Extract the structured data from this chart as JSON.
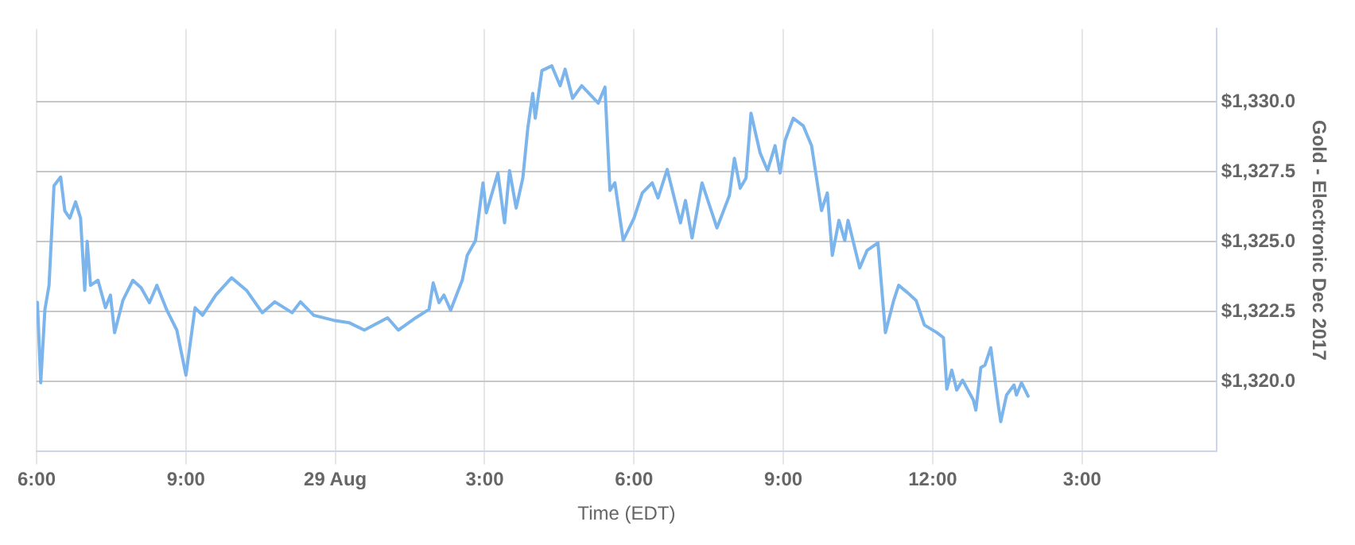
{
  "chart_data": {
    "type": "line",
    "xlabel": "Time (EDT)",
    "ylabel": "Gold - Electronic Dec 2017",
    "x": [
      "--08-28T18:01",
      "--08-28T18:05",
      "--08-28T18:10",
      "--08-28T18:15",
      "--08-28T18:21",
      "--08-28T18:29",
      "--08-28T18:34",
      "--08-28T18:40",
      "--08-28T18:47",
      "--08-28T18:53",
      "--08-28T18:58",
      "--08-28T19:01",
      "--08-28T19:05",
      "--08-28T19:14",
      "--08-28T19:23",
      "--08-28T19:29",
      "--08-28T19:34",
      "--08-28T19:44",
      "--08-28T19:56",
      "--08-28T20:06",
      "--08-28T20:16",
      "--08-28T20:25",
      "--08-28T20:37",
      "--08-28T20:49",
      "--08-28T21:00",
      "--08-28T21:11",
      "--08-28T21:20",
      "--08-28T21:36",
      "--08-28T21:55",
      "--08-28T22:13",
      "--08-28T22:32",
      "--08-28T22:47",
      "--08-28T23:08",
      "--08-28T23:18",
      "--08-28T23:34",
      "--08-28T23:58",
      "--08-29T00:17",
      "--08-29T00:35",
      "--08-29T01:03",
      "--08-29T01:16",
      "--08-29T01:37",
      "--08-29T01:53",
      "--08-29T01:58",
      "--08-29T02:05",
      "--08-29T02:11",
      "--08-29T02:19",
      "--08-29T02:33",
      "--08-29T02:39",
      "--08-29T02:49",
      "--08-29T02:58",
      "--08-29T03:02",
      "--08-29T03:16",
      "--08-29T03:24",
      "--08-29T03:30",
      "--08-29T03:38",
      "--08-29T03:46",
      "--08-29T03:52",
      "--08-29T03:58",
      "--08-29T04:01",
      "--08-29T04:09",
      "--08-29T04:21",
      "--08-29T04:31",
      "--08-29T04:37",
      "--08-29T04:46",
      "--08-29T04:57",
      "--08-29T05:17",
      "--08-29T05:25",
      "--08-29T05:31",
      "--08-29T05:37",
      "--08-29T05:47",
      "--08-29T06:00",
      "--08-29T06:10",
      "--08-29T06:22",
      "--08-29T06:29",
      "--08-29T06:40",
      "--08-29T06:56",
      "--08-29T07:02",
      "--08-29T07:10",
      "--08-29T07:22",
      "--08-29T07:40",
      "--08-29T07:55",
      "--08-29T08:01",
      "--08-29T08:08",
      "--08-29T08:15",
      "--08-29T08:21",
      "--08-29T08:32",
      "--08-29T08:41",
      "--08-29T08:50",
      "--08-29T08:56",
      "--08-29T09:02",
      "--08-29T09:12",
      "--08-29T09:24",
      "--08-29T09:34",
      "--08-29T09:46",
      "--08-29T09:53",
      "--08-29T09:59",
      "--08-29T10:07",
      "--08-29T10:14",
      "--08-29T10:18",
      "--08-29T10:32",
      "--08-29T10:41",
      "--08-29T10:54",
      "--08-29T11:03",
      "--08-29T11:13",
      "--08-29T11:19",
      "--08-29T11:30",
      "--08-29T11:40",
      "--08-29T11:50",
      "--08-29T12:05",
      "--08-29T12:13",
      "--08-29T12:17",
      "--08-29T12:23",
      "--08-29T12:29",
      "--08-29T12:36",
      "--08-29T12:49",
      "--08-29T12:52",
      "--08-29T12:58",
      "--08-29T13:03",
      "--08-29T13:10",
      "--08-29T13:19",
      "--08-29T13:22",
      "--08-29T13:29",
      "--08-29T13:38",
      "--08-29T13:41",
      "--08-29T13:47",
      "--08-29T13:55"
    ],
    "series": [
      {
        "color": "#7cb5ec",
        "values": [
          1322.83,
          1319.96,
          1322.57,
          1323.44,
          1327.0,
          1327.31,
          1326.1,
          1325.84,
          1326.42,
          1325.84,
          1323.26,
          1325.01,
          1323.44,
          1323.62,
          1322.64,
          1323.09,
          1321.75,
          1322.9,
          1323.62,
          1323.35,
          1322.82,
          1323.44,
          1322.55,
          1321.84,
          1320.23,
          1322.64,
          1322.37,
          1323.09,
          1323.71,
          1323.26,
          1322.46,
          1322.85,
          1322.46,
          1322.85,
          1322.37,
          1322.19,
          1322.1,
          1321.84,
          1322.28,
          1321.84,
          1322.28,
          1322.58,
          1323.53,
          1322.82,
          1323.09,
          1322.55,
          1323.62,
          1324.51,
          1325.04,
          1327.1,
          1326.03,
          1327.45,
          1325.67,
          1327.54,
          1326.2,
          1327.27,
          1329.05,
          1330.3,
          1329.41,
          1331.11,
          1331.28,
          1330.57,
          1331.16,
          1330.12,
          1330.57,
          1329.95,
          1330.52,
          1326.83,
          1327.1,
          1325.04,
          1325.84,
          1326.74,
          1327.1,
          1326.56,
          1327.58,
          1325.67,
          1326.47,
          1325.13,
          1327.1,
          1325.49,
          1326.65,
          1327.98,
          1326.91,
          1327.27,
          1329.59,
          1328.17,
          1327.54,
          1328.43,
          1327.45,
          1328.61,
          1329.41,
          1329.14,
          1328.43,
          1326.11,
          1326.74,
          1324.51,
          1325.76,
          1325.04,
          1325.76,
          1324.06,
          1324.69,
          1324.96,
          1321.75,
          1322.9,
          1323.44,
          1323.17,
          1322.9,
          1322.02,
          1321.75,
          1321.57,
          1319.73,
          1320.41,
          1319.7,
          1320.05,
          1319.34,
          1318.98,
          1320.5,
          1320.59,
          1321.21,
          1319.16,
          1318.57,
          1319.52,
          1319.88,
          1319.52,
          1319.96,
          1319.48
        ]
      }
    ],
    "xlim": [
      "--08-28T18:00",
      "--08-29T17:42"
    ],
    "xticks": [
      {
        "value": "--08-28T18:00",
        "label": "6:00"
      },
      {
        "value": "--08-28T21:00",
        "label": "9:00"
      },
      {
        "value": "--08-29T00:00",
        "label": "29 Aug"
      },
      {
        "value": "--08-29T03:00",
        "label": "3:00"
      },
      {
        "value": "--08-29T06:00",
        "label": "6:00"
      },
      {
        "value": "--08-29T09:00",
        "label": "9:00"
      },
      {
        "value": "--08-29T12:00",
        "label": "12:00"
      },
      {
        "value": "--08-29T15:00",
        "label": "3:00"
      }
    ],
    "ylim": [
      1317.5,
      1332.6
    ],
    "yticks": [
      {
        "value": 1320,
        "label": "$1,320.0"
      },
      {
        "value": 1322.5,
        "label": "$1,322.5"
      },
      {
        "value": 1325,
        "label": "$1,325.0"
      },
      {
        "value": 1327.5,
        "label": "$1,327.5"
      },
      {
        "value": 1330,
        "label": "$1,330.0"
      }
    ],
    "grid": true,
    "marker": "none",
    "line_style": "solid"
  }
}
